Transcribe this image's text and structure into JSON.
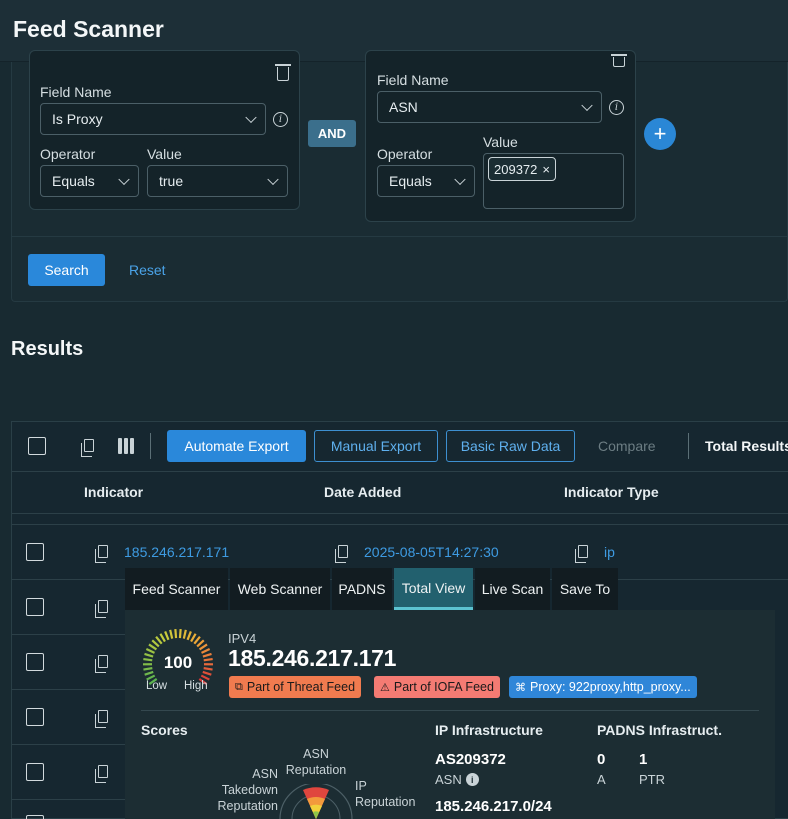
{
  "app": {
    "title": "Feed Scanner"
  },
  "filters": {
    "left": {
      "field_name_label": "Field Name",
      "field_name_value": "Is Proxy",
      "operator_label": "Operator",
      "operator_value": "Equals",
      "value_label": "Value",
      "value_value": "true"
    },
    "connector": "AND",
    "right": {
      "field_name_label": "Field Name",
      "field_name_value": "ASN",
      "operator_label": "Operator",
      "operator_value": "Equals",
      "value_label": "Value",
      "chip": "209372"
    },
    "add_icon": "+",
    "search_label": "Search",
    "reset_label": "Reset"
  },
  "results": {
    "title": "Results",
    "toolbar": {
      "automate_export": "Automate Export",
      "manual_export": "Manual Export",
      "basic_raw_data": "Basic Raw Data",
      "compare": "Compare",
      "total_results": "Total Results:"
    },
    "columns": [
      "Indicator",
      "Date Added",
      "Indicator Type"
    ],
    "rows": [
      {
        "indicator": "185.246.217.171",
        "date": "2025-08-05T14:27:30",
        "type": "ip"
      }
    ]
  },
  "popup": {
    "tabs": [
      "Feed Scanner",
      "Web Scanner",
      "PADNS",
      "Total View",
      "Live Scan",
      "Save To"
    ],
    "active_tab": "Total View",
    "gauge": {
      "value": "100",
      "low": "Low",
      "high": "High",
      "score": 100
    },
    "ip_type": "IPV4",
    "ip": "185.246.217.171",
    "badges": {
      "threat_feed": "Part of Threat Feed",
      "iofa_feed": "Part of IOFA Feed",
      "proxy": "Proxy: 922proxy,http_proxy..."
    },
    "scores": {
      "title": "Scores",
      "asn_reputation": "ASN Reputation",
      "asn_takedown": "ASN Takedown Reputation",
      "ip_reputation": "IP Reputation"
    },
    "ip_infra": {
      "title": "IP Infrastructure",
      "asn": "AS209372",
      "asn_label": "ASN",
      "cidr": "185.246.217.0/24"
    },
    "padns": {
      "title": "PADNS Infrastruct.",
      "a_count": "0",
      "a_label": "A",
      "ptr_count": "1",
      "ptr_label": "PTR"
    }
  },
  "colors": {
    "accent": "#2a88da",
    "threat_badge": "#f07b4f",
    "iofa_badge": "#f47b73",
    "proxy_badge": "#2f86d8",
    "active_tab": "#22606e"
  }
}
